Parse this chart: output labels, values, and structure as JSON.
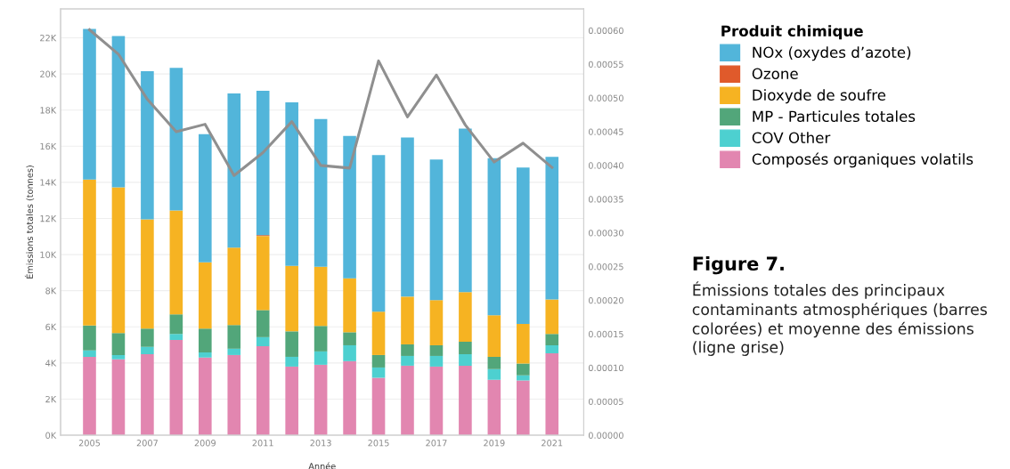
{
  "chart_data": {
    "type": "bar",
    "stacked": true,
    "title": "Figure 7.",
    "subtitle": "Émissions totales des principaux contaminants atmosphériques (barres colorées) et moyenne des émissions (ligne grise)",
    "xlabel": "Année",
    "ylabel": "Émissions totales (tonnes)",
    "legend_title": "Produit chimique",
    "legend": "right",
    "grid": "y",
    "x": [
      2005,
      2006,
      2007,
      2008,
      2009,
      2010,
      2011,
      2012,
      2013,
      2014,
      2015,
      2016,
      2017,
      2018,
      2019,
      2020,
      2021
    ],
    "xlim": [
      2004.0,
      2022.1
    ],
    "xticks": [
      2005,
      2007,
      2009,
      2011,
      2013,
      2015,
      2017,
      2019,
      2021
    ],
    "ylim": [
      0,
      23600
    ],
    "yticks": [
      {
        "value": 0,
        "label": "0K"
      },
      {
        "value": 2000,
        "label": "2K"
      },
      {
        "value": 4000,
        "label": "4K"
      },
      {
        "value": 6000,
        "label": "6K"
      },
      {
        "value": 8000,
        "label": "8K"
      },
      {
        "value": 10000,
        "label": "10K"
      },
      {
        "value": 12000,
        "label": "12K"
      },
      {
        "value": 14000,
        "label": "14K"
      },
      {
        "value": 16000,
        "label": "16K"
      },
      {
        "value": 18000,
        "label": "18K"
      },
      {
        "value": 20000,
        "label": "20K"
      },
      {
        "value": 22000,
        "label": "22K"
      }
    ],
    "y2lim": [
      0,
      0.000632
    ],
    "y2ticks": [
      {
        "value": 0,
        "label": "0.00000"
      },
      {
        "value": 5e-05,
        "label": "0.00005"
      },
      {
        "value": 0.0001,
        "label": "0.00010"
      },
      {
        "value": 0.00015,
        "label": "0.00015"
      },
      {
        "value": 0.0002,
        "label": "0.00020"
      },
      {
        "value": 0.00025,
        "label": "0.00025"
      },
      {
        "value": 0.0003,
        "label": "0.00030"
      },
      {
        "value": 0.00035,
        "label": "0.00035"
      },
      {
        "value": 0.0004,
        "label": "0.00040"
      },
      {
        "value": 0.00045,
        "label": "0.00045"
      },
      {
        "value": 0.0005,
        "label": "0.00050"
      },
      {
        "value": 0.00055,
        "label": "0.00055"
      },
      {
        "value": 0.0006,
        "label": "0.00060"
      }
    ],
    "series": [
      {
        "name": "Composés organiques volatils",
        "color": "#e286b0",
        "values": [
          4340,
          4200,
          4490,
          5280,
          4300,
          4440,
          4930,
          3800,
          3900,
          4100,
          3180,
          3850,
          3800,
          3850,
          3070,
          3030,
          4540
        ]
      },
      {
        "name": "COV Other",
        "color": "#4dd0d0",
        "values": [
          350,
          240,
          400,
          330,
          290,
          350,
          500,
          540,
          740,
          880,
          570,
          540,
          590,
          640,
          590,
          280,
          440
        ]
      },
      {
        "name": "MP - Particules totales",
        "color": "#52a67a",
        "values": [
          1380,
          1220,
          1010,
          1080,
          1310,
          1310,
          1500,
          1410,
          1410,
          720,
          690,
          640,
          590,
          690,
          680,
          660,
          630
        ]
      },
      {
        "name": "Dioxyde de soufre",
        "color": "#f6b322",
        "values": [
          8080,
          8060,
          6050,
          5750,
          3670,
          4290,
          4100,
          3630,
          3280,
          2990,
          2400,
          2640,
          2500,
          2740,
          2300,
          2190,
          1910
        ]
      },
      {
        "name": "Ozone",
        "color": "#e05a2b",
        "values": [
          0,
          0,
          0,
          0,
          0,
          0,
          50,
          0,
          0,
          0,
          0,
          0,
          0,
          0,
          0,
          0,
          0
        ]
      },
      {
        "name": "NOx (oxydes d’azote)",
        "color": "#52b5da",
        "values": [
          8340,
          8380,
          8200,
          7900,
          7100,
          8530,
          7990,
          9050,
          8180,
          7880,
          8670,
          8810,
          7780,
          9050,
          8700,
          8660,
          7890
        ]
      },
      {
        "type": "line",
        "axis": "y2",
        "color": "#8f8f8f",
        "values": [
          0.000601,
          0.000565,
          0.000498,
          0.00045,
          0.000461,
          0.000385,
          0.000419,
          0.000465,
          0.0004,
          0.000396,
          0.000555,
          0.000472,
          0.000534,
          0.00046,
          0.000405,
          0.000433,
          0.000397
        ]
      }
    ]
  }
}
